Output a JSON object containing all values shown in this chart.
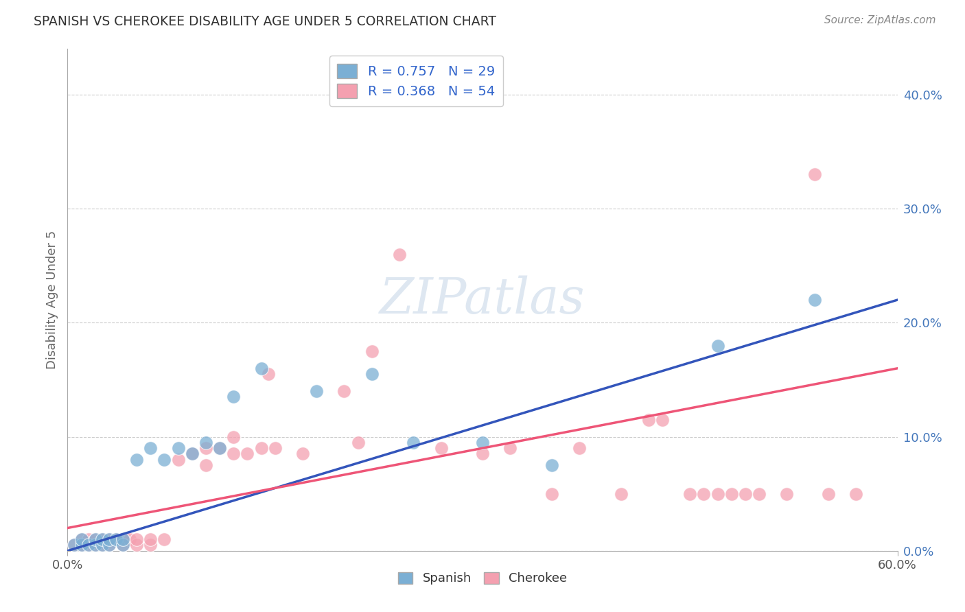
{
  "title": "SPANISH VS CHEROKEE DISABILITY AGE UNDER 5 CORRELATION CHART",
  "source": "Source: ZipAtlas.com",
  "ylabel": "Disability Age Under 5",
  "ylabel_right_ticks": [
    "0.0%",
    "10.0%",
    "20.0%",
    "30.0%",
    "40.0%"
  ],
  "ylabel_right_vals": [
    0.0,
    0.1,
    0.2,
    0.3,
    0.4
  ],
  "xmin": 0.0,
  "xmax": 0.6,
  "ymin": 0.0,
  "ymax": 0.44,
  "spanish_R": 0.757,
  "spanish_N": 29,
  "cherokee_R": 0.368,
  "cherokee_N": 54,
  "spanish_color": "#7BAFD4",
  "cherokee_color": "#F4A0B0",
  "spanish_line_color": "#3355BB",
  "cherokee_line_color": "#EE5577",
  "watermark_text": "ZIPatlas",
  "spanish_points": [
    [
      0.005,
      0.005
    ],
    [
      0.01,
      0.005
    ],
    [
      0.01,
      0.01
    ],
    [
      0.015,
      0.005
    ],
    [
      0.02,
      0.005
    ],
    [
      0.02,
      0.01
    ],
    [
      0.025,
      0.005
    ],
    [
      0.025,
      0.01
    ],
    [
      0.03,
      0.005
    ],
    [
      0.03,
      0.01
    ],
    [
      0.035,
      0.01
    ],
    [
      0.04,
      0.005
    ],
    [
      0.04,
      0.01
    ],
    [
      0.05,
      0.08
    ],
    [
      0.06,
      0.09
    ],
    [
      0.07,
      0.08
    ],
    [
      0.08,
      0.09
    ],
    [
      0.09,
      0.085
    ],
    [
      0.1,
      0.095
    ],
    [
      0.11,
      0.09
    ],
    [
      0.12,
      0.135
    ],
    [
      0.14,
      0.16
    ],
    [
      0.18,
      0.14
    ],
    [
      0.22,
      0.155
    ],
    [
      0.25,
      0.095
    ],
    [
      0.3,
      0.095
    ],
    [
      0.35,
      0.075
    ],
    [
      0.47,
      0.18
    ],
    [
      0.54,
      0.22
    ]
  ],
  "cherokee_points": [
    [
      0.005,
      0.005
    ],
    [
      0.01,
      0.005
    ],
    [
      0.01,
      0.01
    ],
    [
      0.015,
      0.005
    ],
    [
      0.015,
      0.01
    ],
    [
      0.02,
      0.005
    ],
    [
      0.02,
      0.01
    ],
    [
      0.025,
      0.005
    ],
    [
      0.025,
      0.01
    ],
    [
      0.03,
      0.005
    ],
    [
      0.03,
      0.01
    ],
    [
      0.035,
      0.01
    ],
    [
      0.04,
      0.005
    ],
    [
      0.04,
      0.01
    ],
    [
      0.045,
      0.01
    ],
    [
      0.05,
      0.005
    ],
    [
      0.05,
      0.01
    ],
    [
      0.06,
      0.005
    ],
    [
      0.06,
      0.01
    ],
    [
      0.07,
      0.01
    ],
    [
      0.08,
      0.08
    ],
    [
      0.09,
      0.085
    ],
    [
      0.1,
      0.075
    ],
    [
      0.1,
      0.09
    ],
    [
      0.11,
      0.09
    ],
    [
      0.12,
      0.085
    ],
    [
      0.12,
      0.1
    ],
    [
      0.13,
      0.085
    ],
    [
      0.14,
      0.09
    ],
    [
      0.145,
      0.155
    ],
    [
      0.15,
      0.09
    ],
    [
      0.17,
      0.085
    ],
    [
      0.2,
      0.14
    ],
    [
      0.21,
      0.095
    ],
    [
      0.22,
      0.175
    ],
    [
      0.24,
      0.26
    ],
    [
      0.27,
      0.09
    ],
    [
      0.3,
      0.085
    ],
    [
      0.32,
      0.09
    ],
    [
      0.35,
      0.05
    ],
    [
      0.37,
      0.09
    ],
    [
      0.4,
      0.05
    ],
    [
      0.42,
      0.115
    ],
    [
      0.43,
      0.115
    ],
    [
      0.45,
      0.05
    ],
    [
      0.46,
      0.05
    ],
    [
      0.47,
      0.05
    ],
    [
      0.48,
      0.05
    ],
    [
      0.49,
      0.05
    ],
    [
      0.5,
      0.05
    ],
    [
      0.52,
      0.05
    ],
    [
      0.54,
      0.33
    ],
    [
      0.55,
      0.05
    ],
    [
      0.57,
      0.05
    ]
  ],
  "spanish_trend": [
    0.0,
    0.6
  ],
  "cherokee_trend": [
    0.0,
    0.6
  ]
}
